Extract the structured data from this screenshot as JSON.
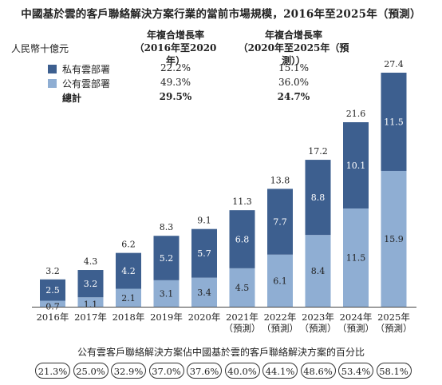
{
  "title": "中國基於雲的客戶聯絡解決方案行業的當前市場規模，2016年至2025年（預測）",
  "unit": "人民幣十億元",
  "cagr": {
    "headers": [
      "年複合增長率\n（2016年至2020年）",
      "年複合增長率\n（2020年至2025年（預測））"
    ],
    "rows": [
      {
        "label": "私有雲部署",
        "period1": "22.2%",
        "period2": "15.1%",
        "color": "#3d5f8f"
      },
      {
        "label": "公有雲部署",
        "period1": "49.3%",
        "period2": "36.0%",
        "color": "#8faed3"
      },
      {
        "label": "總計",
        "period1": "29.5%",
        "period2": "24.7%",
        "bold": true
      }
    ]
  },
  "chart_data": {
    "type": "bar",
    "stacked": true,
    "categories": [
      "2016年",
      "2017年",
      "2018年",
      "2019年",
      "2020年",
      "2021年\n（預測）",
      "2022年\n（預測）",
      "2023年\n（預測）",
      "2024年\n（預測）",
      "2025年\n（預測）"
    ],
    "series": [
      {
        "name": "公有雲部署",
        "values": [
          0.7,
          1.1,
          2.1,
          3.1,
          3.4,
          4.5,
          6.1,
          8.4,
          11.5,
          15.9
        ],
        "color": "#8faed3"
      },
      {
        "name": "私有雲部署",
        "values": [
          2.5,
          3.2,
          4.2,
          5.2,
          5.7,
          6.8,
          7.7,
          8.8,
          10.1,
          11.5
        ],
        "color": "#3d5f8f"
      }
    ],
    "totals": [
      3.2,
      4.3,
      6.2,
      8.3,
      9.1,
      11.3,
      13.8,
      17.2,
      21.6,
      27.4
    ],
    "ylim": [
      0,
      27.4
    ],
    "grid": false,
    "legend": "top-left"
  },
  "share": {
    "caption": "公有雲客戶聯絡解決方案佔中國基於雲的客戶聯絡解決方案的百分比",
    "values": [
      "21.3%",
      "25.0%",
      "32.9%",
      "37.0%",
      "37.6%",
      "40.0%",
      "44.1%",
      "48.6%",
      "53.4%",
      "58.1%"
    ]
  }
}
